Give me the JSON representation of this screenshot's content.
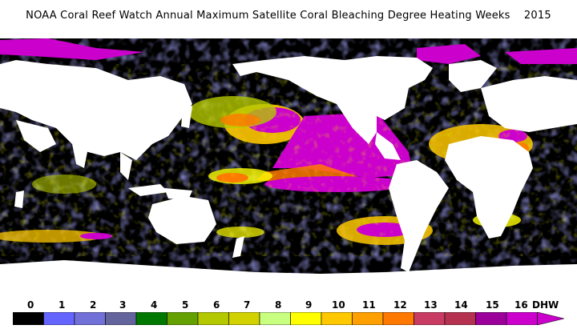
{
  "title": "NOAA Coral Reef Watch Annual Maximum Satellite Coral Bleaching Degree Heating Weeks    2015",
  "colors": {
    "ocean_background": "#000000",
    "land": "#ffffff",
    "sea_ice_or_high": "#cc00cc"
  },
  "legend": {
    "unit": "DHW",
    "labels": [
      "0",
      "1",
      "2",
      "3",
      "4",
      "5",
      "6",
      "7",
      "8",
      "9",
      "10",
      "11",
      "12",
      "13",
      "14",
      "15",
      "16"
    ],
    "colors": [
      "#000000",
      "#6464ff",
      "#7070d8",
      "#64649c",
      "#007800",
      "#64a000",
      "#b4c800",
      "#d2d200",
      "#c8ff80",
      "#ffff00",
      "#ffc800",
      "#ffa000",
      "#ff7800",
      "#c83c64",
      "#b43250",
      "#9b009b",
      "#cc00cc"
    ]
  }
}
